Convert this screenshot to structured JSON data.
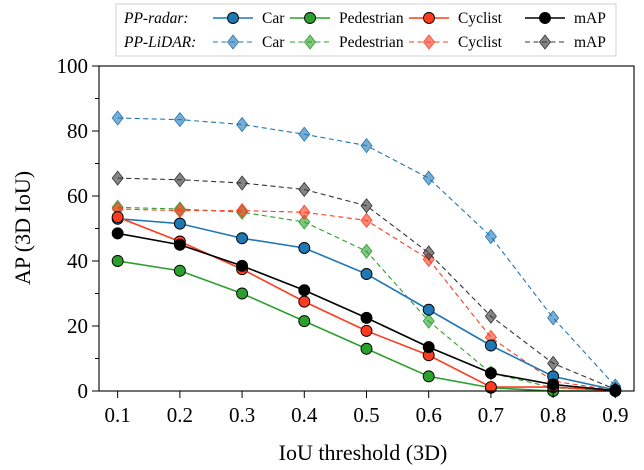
{
  "chart_data": {
    "type": "line",
    "title": "",
    "xlabel": "IoU threshold (3D)",
    "ylabel": "AP (3D IoU)",
    "x": [
      0.1,
      0.2,
      0.3,
      0.4,
      0.5,
      0.6,
      0.7,
      0.8,
      0.9
    ],
    "x_tick_labels": [
      "0.1",
      "0.2",
      "0.3",
      "0.4",
      "0.5",
      "0.6",
      "0.7",
      "0.8",
      "0.9"
    ],
    "xlim": [
      0.07,
      0.93
    ],
    "ylim": [
      0,
      100
    ],
    "y_ticks": [
      0,
      20,
      40,
      60,
      80,
      100
    ],
    "y_tick_labels": [
      "0",
      "20",
      "40",
      "60",
      "80",
      "100"
    ],
    "grid": false,
    "legend_position": "top",
    "legend_groups": [
      {
        "label": "PP-radar:",
        "line_style": "solid",
        "marker": "circle"
      },
      {
        "label": "PP-LiDAR:",
        "line_style": "dashed",
        "marker": "diamond"
      }
    ],
    "series": [
      {
        "name": "Car",
        "group": "PP-radar",
        "color": "#1f77b4",
        "line_style": "solid",
        "marker": "circle",
        "values": [
          53,
          51.5,
          47,
          44,
          36,
          25,
          14,
          4.5,
          0.3
        ]
      },
      {
        "name": "Pedestrian",
        "group": "PP-radar",
        "color": "#2ca02c",
        "line_style": "solid",
        "marker": "circle",
        "values": [
          40,
          37,
          30,
          21.5,
          13,
          4.5,
          1,
          0,
          0
        ]
      },
      {
        "name": "Cyclist",
        "group": "PP-radar",
        "color": "#ff3b1f",
        "line_style": "solid",
        "marker": "circle",
        "values": [
          53.5,
          46,
          37.5,
          27.5,
          18.5,
          11,
          1.2,
          1.2,
          0.1
        ]
      },
      {
        "name": "mAP",
        "group": "PP-radar",
        "color": "#000000",
        "line_style": "solid",
        "marker": "circle",
        "values": [
          48.5,
          45,
          38.5,
          31,
          22.5,
          13.5,
          5.5,
          2,
          0.1
        ]
      },
      {
        "name": "Car",
        "group": "PP-LiDAR",
        "color": "#1f77b4",
        "line_style": "dashed",
        "marker": "diamond",
        "values": [
          84,
          83.5,
          82,
          79,
          75.5,
          65.5,
          47.5,
          22.5,
          1.5
        ]
      },
      {
        "name": "Pedestrian",
        "group": "PP-LiDAR",
        "color": "#2ca02c",
        "line_style": "dashed",
        "marker": "diamond",
        "values": [
          56.5,
          56,
          55,
          52,
          43,
          21.5,
          5.5,
          1,
          0.1
        ]
      },
      {
        "name": "Cyclist",
        "group": "PP-LiDAR",
        "color": "#ff3b1f",
        "line_style": "dashed",
        "marker": "diamond",
        "values": [
          56,
          55.5,
          55.5,
          55,
          52.5,
          40.5,
          16.5,
          3,
          0.2
        ]
      },
      {
        "name": "mAP",
        "group": "PP-LiDAR",
        "color": "#333333",
        "line_style": "dashed",
        "marker": "diamond",
        "values": [
          65.5,
          65,
          64,
          62,
          57,
          42.5,
          23,
          8.5,
          0.5
        ]
      }
    ]
  }
}
